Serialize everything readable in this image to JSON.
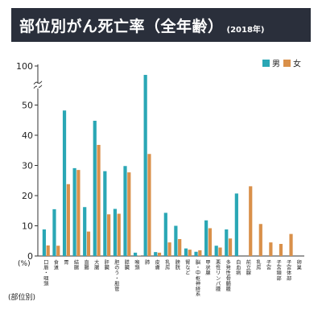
{
  "header": {
    "title": "部位別がん死亡率（全年齢）",
    "subtitle": "(2018年)"
  },
  "colors": {
    "male": "#2aa7b5",
    "female": "#d9904a",
    "title_bg": "#2a2f3b",
    "axis": "#333333"
  },
  "chart_data": {
    "type": "bar",
    "categories": [
      "口唇・咽頭",
      "食道",
      "胃",
      "結腸",
      "直腸",
      "大腸",
      "肝臓",
      "胆のう・胆管",
      "膵臓",
      "喉頭",
      "肺",
      "皮膚",
      "乳房",
      "膀胱",
      "腎など",
      "脳・中枢神経系",
      "甲状腺",
      "悪性リンパ腫",
      "多発性骨髄腫",
      "白血病",
      "前立腺",
      "乳房",
      "子宮",
      "子宮頸部",
      "子宮体部",
      "卵巣"
    ],
    "series": [
      {
        "name": "男",
        "values": [
          8.8,
          15.5,
          48.2,
          29.1,
          16.2,
          44.8,
          28.1,
          15.6,
          29.8,
          1.1,
          96.5,
          1.3,
          14.3,
          10.0,
          2.5,
          1.4,
          11.8,
          3.4,
          8.8,
          20.7,
          null,
          null,
          null,
          null,
          null,
          null
        ]
      },
      {
        "name": "女",
        "values": [
          3.5,
          3.4,
          23.8,
          28.5,
          8.1,
          36.8,
          13.8,
          14.0,
          27.7,
          0.1,
          33.8,
          1.1,
          4.5,
          5.6,
          2.1,
          1.9,
          9.2,
          2.8,
          5.8,
          null,
          23.1,
          10.6,
          4.5,
          4.0,
          7.3,
          null
        ]
      }
    ],
    "ylabel": "(%)",
    "xlabel": "(部位別)",
    "yticks": [
      0,
      10,
      20,
      30,
      40,
      50,
      100
    ],
    "axis_break": [
      55,
      95
    ],
    "ylim": [
      0,
      100
    ],
    "legend": "top-right"
  }
}
